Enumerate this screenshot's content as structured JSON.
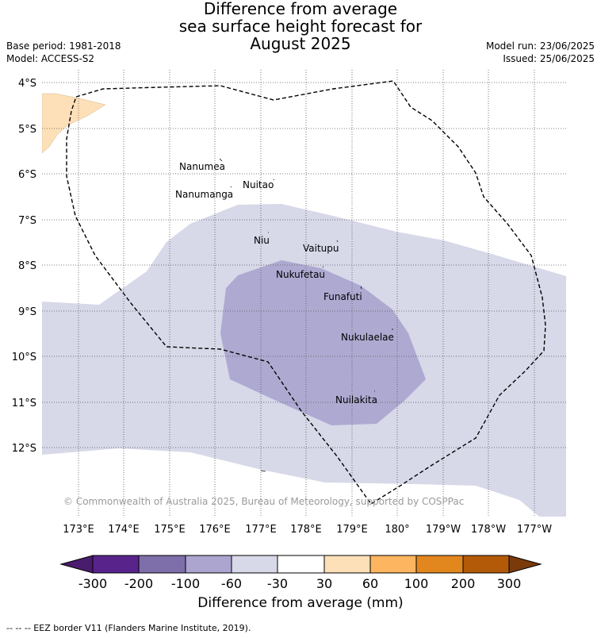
{
  "title": {
    "line1": "Difference from average",
    "line2": "sea surface height forecast for",
    "line3": "August 2025"
  },
  "meta": {
    "base_period": "Base period: 1981-2018",
    "model": "Model: ACCESS-S2",
    "model_run": "Model run: 23/06/2025",
    "issued": "Issued: 25/06/2025"
  },
  "axes": {
    "lat_ticks": [
      "4°S",
      "5°S",
      "6°S",
      "7°S",
      "8°S",
      "9°S",
      "10°S",
      "11°S",
      "12°S"
    ],
    "lon_ticks": [
      "173°E",
      "174°E",
      "175°E",
      "176°E",
      "177°E",
      "178°E",
      "179°E",
      "180°",
      "179°W",
      "178°W",
      "177°W"
    ]
  },
  "places": [
    {
      "name": "Nanumea"
    },
    {
      "name": "Nuitao"
    },
    {
      "name": "Nanumanga"
    },
    {
      "name": "Niu"
    },
    {
      "name": "Vaitupu"
    },
    {
      "name": "Nukufetau"
    },
    {
      "name": "Funafuti"
    },
    {
      "name": "Nukulaelae"
    },
    {
      "name": "Nuilakita"
    }
  ],
  "credit": "© Commonwealth of Australia 2025, Bureau of Meteorology, supported by COSPPac",
  "colorbar": {
    "label": "Difference from average (mm)",
    "ticks": [
      "-300",
      "-200",
      "-100",
      "-60",
      "-30",
      "30",
      "60",
      "100",
      "200",
      "300"
    ],
    "colors": [
      "#4a1c6e",
      "#58248c",
      "#7e6eaa",
      "#aba5cf",
      "#d7d8e8",
      "#ffffff",
      "#fde0b8",
      "#fdb55f",
      "#e2861e",
      "#b35a08",
      "#7a3a0a"
    ]
  },
  "legend": {
    "eez": "-- -- -- EEZ border V11 (Flanders Marine Institute, 2019)."
  }
}
